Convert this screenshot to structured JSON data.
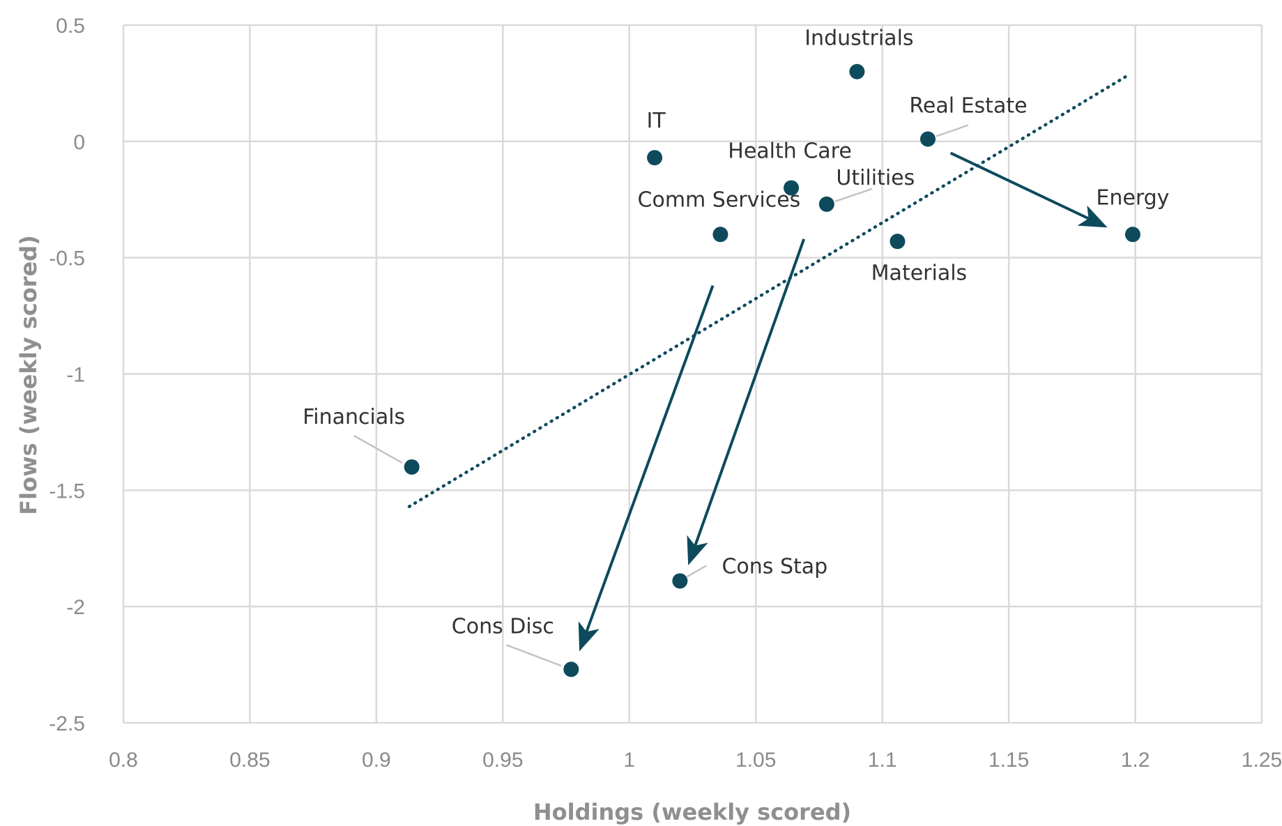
{
  "chart_data": {
    "type": "scatter",
    "title": "",
    "xlabel": "Holdings (weekly scored)",
    "ylabel": "Flows (weekly scored)",
    "xlim": [
      0.8,
      1.25
    ],
    "ylim": [
      -2.5,
      0.5
    ],
    "x_ticks": [
      "0.8",
      "0.85",
      "0.9",
      "0.95",
      "1",
      "1.05",
      "1.1",
      "1.15",
      "1.2",
      "1.25"
    ],
    "y_ticks": [
      "0.5",
      "0",
      "-0.5",
      "-1",
      "-1.5",
      "-2",
      "-2.5"
    ],
    "grid": true,
    "marker_color": "#0d4a5c",
    "points": [
      {
        "name": "Industrials",
        "x": 1.09,
        "y": 0.3
      },
      {
        "name": "Real Estate",
        "x": 1.118,
        "y": 0.01
      },
      {
        "name": "IT",
        "x": 1.01,
        "y": -0.07
      },
      {
        "name": "Health Care",
        "x": 1.064,
        "y": -0.2
      },
      {
        "name": "Utilities",
        "x": 1.078,
        "y": -0.27
      },
      {
        "name": "Comm Services",
        "x": 1.036,
        "y": -0.4
      },
      {
        "name": "Materials",
        "x": 1.106,
        "y": -0.43
      },
      {
        "name": "Energy",
        "x": 1.199,
        "y": -0.4
      },
      {
        "name": "Financials",
        "x": 0.914,
        "y": -1.4
      },
      {
        "name": "Cons Stap",
        "x": 1.02,
        "y": -1.89
      },
      {
        "name": "Cons Disc",
        "x": 0.977,
        "y": -2.27
      }
    ],
    "trendline": {
      "style": "dotted",
      "x": [
        0.913,
        1.198
      ],
      "y": [
        -1.57,
        0.29
      ]
    },
    "arrows": [
      {
        "from": [
          1.127,
          -0.05
        ],
        "to": [
          1.187,
          -0.36
        ]
      },
      {
        "from": [
          1.069,
          -0.42
        ],
        "to": [
          1.024,
          -1.8
        ]
      },
      {
        "from": [
          1.033,
          -0.62
        ],
        "to": [
          0.981,
          -2.17
        ]
      }
    ]
  }
}
